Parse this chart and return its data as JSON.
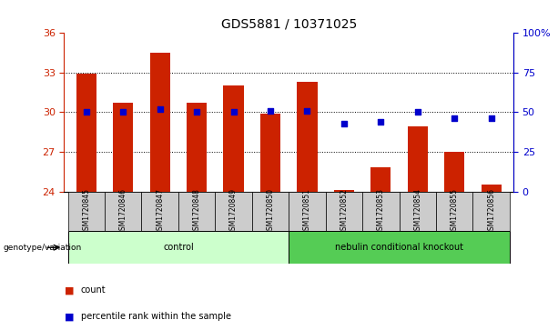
{
  "title": "GDS5881 / 10371025",
  "samples": [
    "GSM1720845",
    "GSM1720846",
    "GSM1720847",
    "GSM1720848",
    "GSM1720849",
    "GSM1720850",
    "GSM1720851",
    "GSM1720852",
    "GSM1720853",
    "GSM1720854",
    "GSM1720855",
    "GSM1720856"
  ],
  "counts": [
    32.9,
    30.7,
    34.5,
    30.7,
    32.0,
    29.9,
    32.3,
    24.1,
    25.8,
    28.9,
    27.0,
    24.5
  ],
  "percentiles": [
    50,
    50,
    52,
    50,
    50,
    51,
    51,
    43,
    44,
    50,
    46,
    46
  ],
  "ymin": 24,
  "ymax": 36,
  "yticks": [
    24,
    27,
    30,
    33,
    36
  ],
  "y2min": 0,
  "y2max": 100,
  "y2ticks": [
    0,
    25,
    50,
    75,
    100
  ],
  "bar_color": "#cc2200",
  "dot_color": "#0000cc",
  "bar_width": 0.55,
  "control_label": "control",
  "knockout_label": "nebulin conditional knockout",
  "genotype_label": "genotype/variation",
  "control_color": "#ccffcc",
  "knockout_color": "#55cc55",
  "tick_area_color": "#cccccc",
  "legend_count_label": "count",
  "legend_pct_label": "percentile rank within the sample",
  "grid_color": "#000000",
  "title_fontsize": 10,
  "tick_fontsize": 8,
  "label_fontsize": 7
}
